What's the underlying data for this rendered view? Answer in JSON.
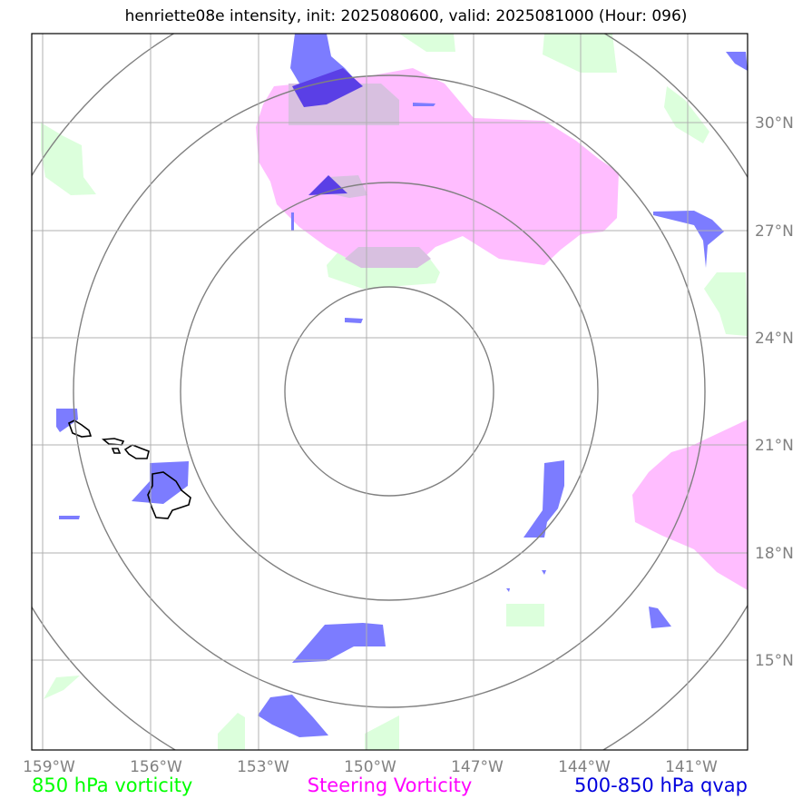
{
  "title": "henriette08e intensity, init: 2025080600, valid: 2025081000 (Hour: 096)",
  "map": {
    "lon_labels": [
      "159°W",
      "156°W",
      "153°W",
      "150°W",
      "147°W",
      "144°W",
      "141°W"
    ],
    "lat_labels": [
      "30°N",
      "27°N",
      "24°N",
      "21°N",
      "18°N",
      "15°N"
    ]
  },
  "legend": [
    {
      "label": "850 hPa vorticity",
      "color": "#00ff00"
    },
    {
      "label": "Steering Vorticity",
      "color": "#ff00ff"
    },
    {
      "label": "500-850 hPa qvap",
      "color": "#0000dd"
    }
  ],
  "colors": {
    "vorticity_850": "#dcffdc",
    "steering_vorticity": "#ffbdff",
    "qvap": "#7c7cff",
    "qvap_dark": "#5a3fe6",
    "overlap": "#d8c0e0",
    "grid": "#b0b0b0",
    "range_rings": "#808080",
    "coastline": "#000000"
  }
}
